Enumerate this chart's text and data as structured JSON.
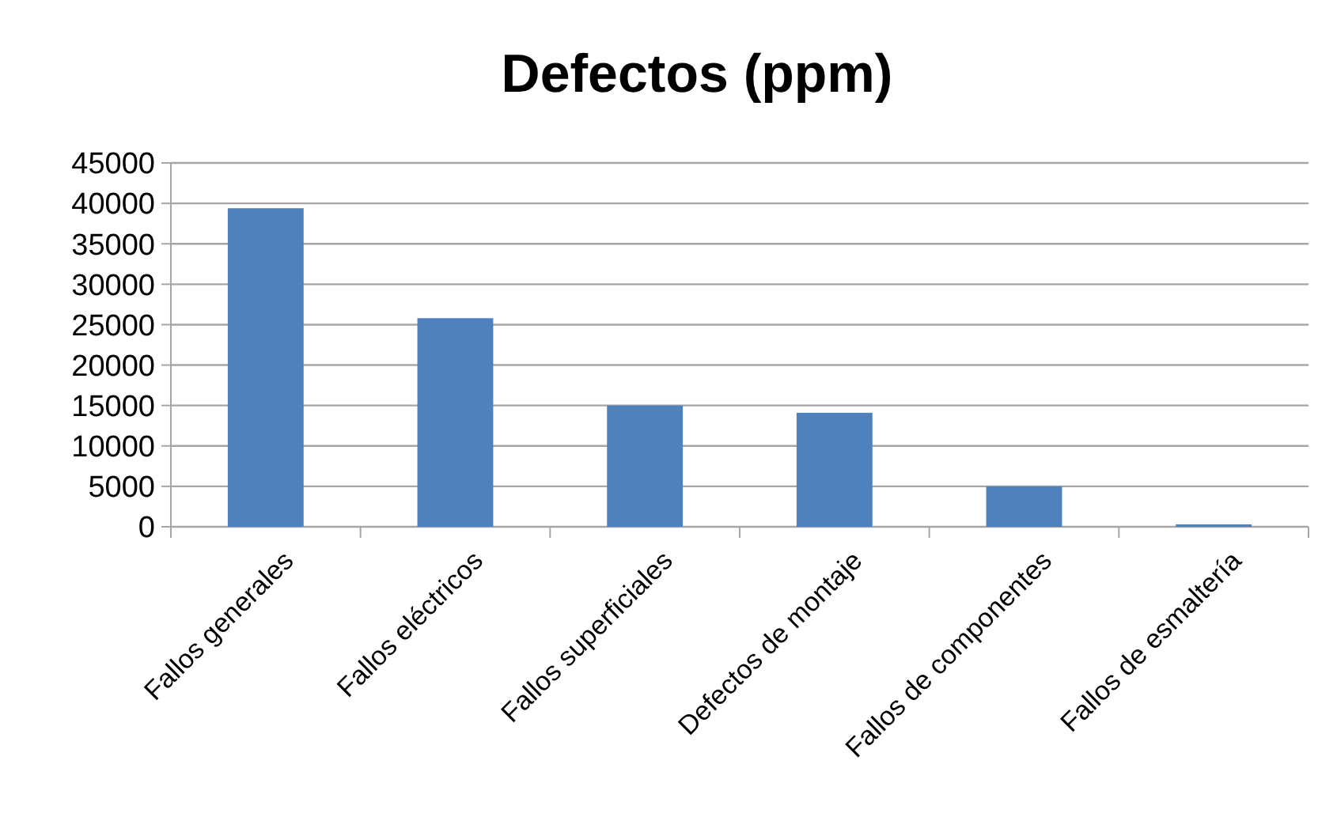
{
  "chart_data": {
    "type": "bar",
    "title": "Defectos (ppm)",
    "categories": [
      "Fallos generales",
      "Fallos eléctricos",
      "Fallos superficiales",
      "Defectos de montaje",
      "Fallos de componentes",
      "Fallos de esmaltería"
    ],
    "values": [
      39400,
      25800,
      15000,
      14100,
      5000,
      300
    ],
    "color": "#4f81bd",
    "ylim": [
      0,
      45000
    ],
    "yticks": [
      0,
      5000,
      10000,
      15000,
      20000,
      25000,
      30000,
      35000,
      40000,
      45000
    ],
    "grid": "y"
  }
}
